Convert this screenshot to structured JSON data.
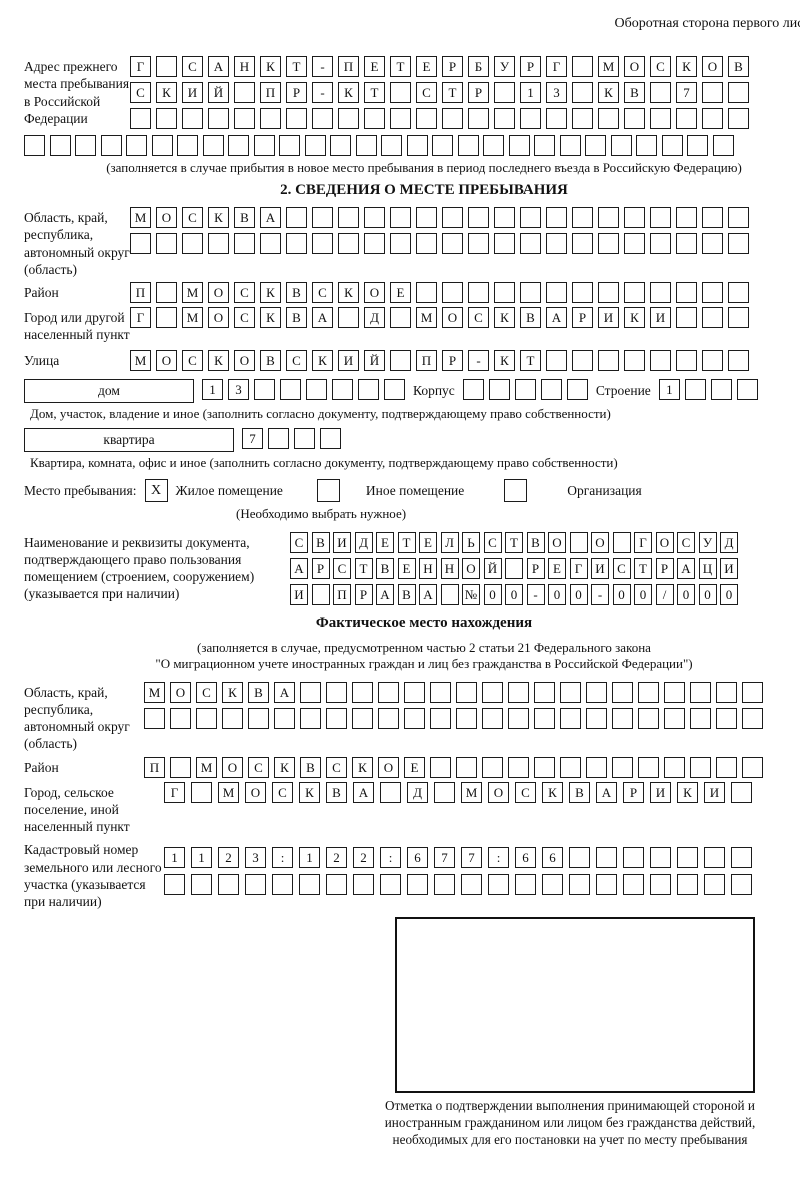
{
  "page": {
    "header_note": "Оборотная сторона первого листа"
  },
  "prev_address": {
    "label": "Адрес прежнего места пребывания в Российской Федерации",
    "row1": "Г САНКТ-ПЕТЕРБУРГ МОСКОВ",
    "row2": "СКИЙ ПР-КТ СТР 13 КВ 7",
    "row3": "",
    "row4": "",
    "caption": "(заполняется в случае прибытия в новое место пребывания в период последнего въезда в Российскую Федерацию)"
  },
  "section2": {
    "title": "2. СВЕДЕНИЯ О МЕСТЕ ПРЕБЫВАНИЯ",
    "oblast": {
      "label": "Область, край, республика, автономный округ (область)",
      "row1": "МОСКВА",
      "row2": ""
    },
    "raion": {
      "label": "Район",
      "row1": "П МОСКВСКОЕ"
    },
    "gorod": {
      "label": "Город или другой населенный пункт",
      "row1": "Г МОСКВА Д МОСКВАРИКИ"
    },
    "ulitsa": {
      "label": "Улица",
      "row1": "МОСКОВСКИЙ ПР-КТ"
    },
    "dom": {
      "box_label": "дом",
      "cells": "13",
      "korpus_label": "Корпус",
      "korpus_cells": "",
      "stroenie_label": "Строение",
      "stroenie_cells": "1",
      "caption": "Дом, участок, владение и иное (заполнить согласно документу, подтверждающему право собственности)"
    },
    "kvartira": {
      "box_label": "квартира",
      "cells": "7",
      "caption": "Квартира, комната, офис и иное (заполнить согласно документу, подтверждающему право собственности)"
    },
    "mesto": {
      "label": "Место пребывания:",
      "options": [
        {
          "label": "Жилое помещение",
          "checked": "X"
        },
        {
          "label": "Иное помещение",
          "checked": ""
        },
        {
          "label": "Организация",
          "checked": ""
        }
      ],
      "note": "(Необходимо выбрать нужное)"
    },
    "document": {
      "label": "Наименование и реквизиты документа, подтверждающего право пользования помещением (строением, сооружением) (указывается при наличии)",
      "row1": "СВИДЕТЕЛЬСТВО О ГОСУД",
      "row2": "АРСТВЕННОЙ РЕГИСТРАЦИ",
      "row3": "И ПРАВА №00-00-00/000"
    }
  },
  "fact": {
    "title": "Фактическое место нахождения",
    "caption_line1": "(заполняется в случае, предусмотренном частью 2 статьи 21 Федерального закона",
    "caption_line2": "\"О миграционном учете иностранных граждан и лиц без гражданства в Российской Федерации\")",
    "oblast": {
      "label": "Область, край, республика, автономный округ (область)",
      "row1": "МОСКВА",
      "row2": ""
    },
    "raion": {
      "label": "Район",
      "row1": "П МОСКВСКОЕ"
    },
    "gorod": {
      "label": "Город, сельское поселение, иной населенный пункт",
      "row1": "Г МОСКВА Д МОСКВАРИКИ"
    },
    "kadastr": {
      "label": "Кадастровый номер земельного или лесного участка (указывается при наличии)",
      "row1": "1123:122:677:66",
      "row2": ""
    },
    "stamp_caption": "Отметка о подтверждении выполнения принимающей стороной и иностранным гражданином или лицом без гражданства действий, необходимых для его постановки на учет по месту пребывания"
  }
}
